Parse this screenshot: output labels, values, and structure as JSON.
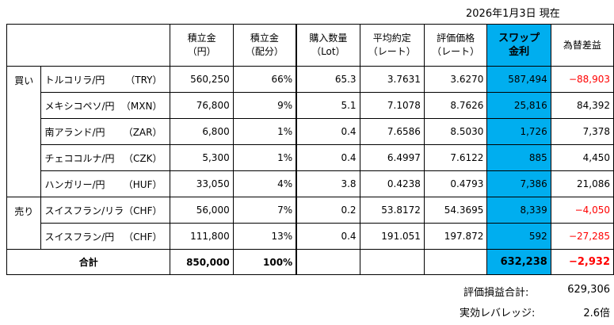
{
  "date_label": "2026年1月3日 現在",
  "headers": {
    "deposit_yen": [
      "積立金",
      "（円）"
    ],
    "deposit_share": [
      "積立金",
      "（配分）"
    ],
    "lots": [
      "購入数量",
      "（Lot）"
    ],
    "avg_rate": [
      "平均約定",
      "（レート）"
    ],
    "eval_rate": [
      "評価価格",
      "（レート）"
    ],
    "swap": [
      "スワップ",
      "金利"
    ],
    "fx_pl": "為替差益"
  },
  "groups": [
    {
      "side": "買い",
      "rows": [
        {
          "pair": "トルコリラ/円",
          "code": "（TRY）",
          "deposit": "560,250",
          "share": "66%",
          "lots": "65.3",
          "avg": "3.7631",
          "eval": "3.6270",
          "swap": "587,494",
          "fx": "−88,903",
          "fx_negative": true
        },
        {
          "pair": "メキシコペソ/円",
          "code": "（MXN）",
          "deposit": "76,800",
          "share": "9%",
          "lots": "5.1",
          "avg": "7.1078",
          "eval": "8.7626",
          "swap": "25,816",
          "fx": "84,392",
          "fx_negative": false
        },
        {
          "pair": "南アランド/円",
          "code": "（ZAR）",
          "deposit": "6,800",
          "share": "1%",
          "lots": "0.4",
          "avg": "7.6586",
          "eval": "8.5030",
          "swap": "1,726",
          "fx": "7,378",
          "fx_negative": false
        },
        {
          "pair": "チェココルナ/円",
          "code": "（CZK）",
          "deposit": "5,300",
          "share": "1%",
          "lots": "0.4",
          "avg": "6.4997",
          "eval": "7.6122",
          "swap": "885",
          "fx": "4,450",
          "fx_negative": false
        },
        {
          "pair": "ハンガリー/円",
          "code": "（HUF）",
          "deposit": "33,050",
          "share": "4%",
          "lots": "3.8",
          "avg": "0.4238",
          "eval": "0.4793",
          "swap": "7,386",
          "fx": "21,086",
          "fx_negative": false
        }
      ]
    },
    {
      "side": "売り",
      "rows": [
        {
          "pair": "スイスフラン/リラ",
          "code": "（CHF）",
          "deposit": "56,000",
          "share": "7%",
          "lots": "0.2",
          "avg": "53.8172",
          "eval": "54.3695",
          "swap": "8,339",
          "fx": "−4,050",
          "fx_negative": true
        },
        {
          "pair": "スイスフラン/円",
          "code": "（CHF）",
          "deposit": "111,800",
          "share": "13%",
          "lots": "0.4",
          "avg": "191.051",
          "eval": "197.872",
          "swap": "592",
          "fx": "−27,285",
          "fx_negative": true
        }
      ]
    }
  ],
  "total": {
    "label": "合計",
    "deposit": "850,000",
    "share": "100%",
    "swap": "632,238",
    "fx": "−2,932"
  },
  "summary": [
    {
      "label": "評価損益合計:",
      "value": "629,306"
    },
    {
      "label": "実効レバレッジ:",
      "value": "2.6倍"
    }
  ],
  "colors": {
    "swap_highlight": "#00aeef",
    "negative": "#ff0000"
  }
}
